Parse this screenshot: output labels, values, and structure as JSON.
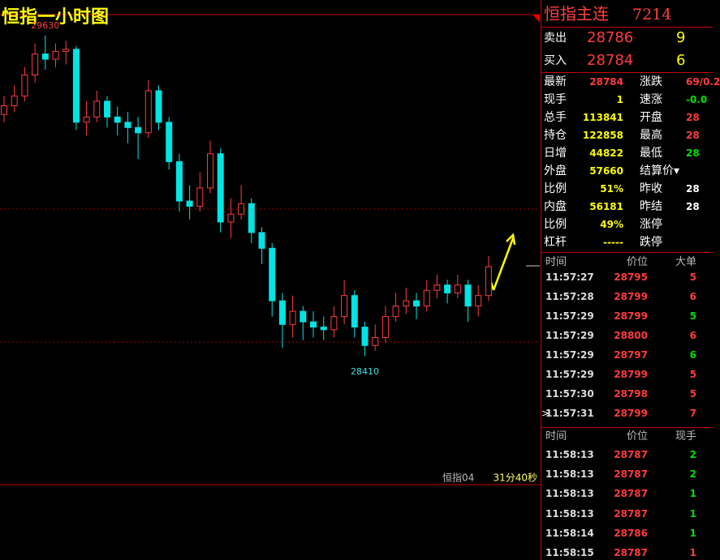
{
  "title": "恒指一小时图",
  "chart": {
    "type": "candlestick",
    "ylim": [
      27920,
      29710
    ],
    "max_label": 29630,
    "min_label": 28410,
    "up_color": "#ff3c3c",
    "down_color": "#00e4e4",
    "candles": [
      [
        29330,
        29363,
        29400,
        29300
      ],
      [
        29363,
        29400,
        29440,
        29340
      ],
      [
        29400,
        29480,
        29510,
        29380
      ],
      [
        29480,
        29560,
        29600,
        29450
      ],
      [
        29560,
        29540,
        29630,
        29500
      ],
      [
        29540,
        29570,
        29600,
        29510
      ],
      [
        29570,
        29578,
        29610,
        29520
      ],
      [
        29578,
        29300,
        29590,
        29270
      ],
      [
        29300,
        29320,
        29380,
        29250
      ],
      [
        29320,
        29380,
        29420,
        29300
      ],
      [
        29380,
        29320,
        29400,
        29280
      ],
      [
        29320,
        29300,
        29360,
        29250
      ],
      [
        29300,
        29280,
        29340,
        29220
      ],
      [
        29280,
        29260,
        29320,
        29160
      ],
      [
        29260,
        29420,
        29460,
        29240
      ],
      [
        29420,
        29300,
        29440,
        29270
      ],
      [
        29300,
        29150,
        29320,
        29120
      ],
      [
        29150,
        29000,
        29180,
        28960
      ],
      [
        29000,
        28980,
        29060,
        28930
      ],
      [
        28980,
        29050,
        29110,
        28960
      ],
      [
        29050,
        29180,
        29230,
        29030
      ],
      [
        29180,
        28920,
        29200,
        28880
      ],
      [
        28920,
        28950,
        29010,
        28860
      ],
      [
        28950,
        28990,
        29060,
        28930
      ],
      [
        28990,
        28880,
        29010,
        28840
      ],
      [
        28880,
        28820,
        28900,
        28760
      ],
      [
        28820,
        28620,
        28840,
        28560
      ],
      [
        28620,
        28530,
        28650,
        28440
      ],
      [
        28530,
        28580,
        28640,
        28480
      ],
      [
        28580,
        28540,
        28600,
        28470
      ],
      [
        28540,
        28520,
        28580,
        28480
      ],
      [
        28520,
        28510,
        28560,
        28470
      ],
      [
        28510,
        28560,
        28600,
        28480
      ],
      [
        28560,
        28640,
        28700,
        28530
      ],
      [
        28640,
        28520,
        28660,
        28480
      ],
      [
        28520,
        28450,
        28540,
        28410
      ],
      [
        28450,
        28480,
        28530,
        28430
      ],
      [
        28480,
        28560,
        28600,
        28460
      ],
      [
        28560,
        28600,
        28650,
        28540
      ],
      [
        28600,
        28620,
        28670,
        28570
      ],
      [
        28620,
        28600,
        28650,
        28550
      ],
      [
        28600,
        28660,
        28700,
        28580
      ],
      [
        28660,
        28680,
        28720,
        28630
      ],
      [
        28680,
        28650,
        28700,
        28610
      ],
      [
        28650,
        28680,
        28720,
        28630
      ],
      [
        28680,
        28600,
        28700,
        28540
      ],
      [
        28600,
        28640,
        28680,
        28560
      ],
      [
        28640,
        28750,
        28790,
        28620
      ]
    ]
  },
  "footer": {
    "contract": "恒指04",
    "countdown": "31分40秒"
  },
  "quote": {
    "name": "恒指主连",
    "code": "7214",
    "ask": {
      "label": "卖出",
      "price": 28786,
      "size": 9
    },
    "bid": {
      "label": "买入",
      "price": 28784,
      "size": 6
    }
  },
  "stats_left": [
    {
      "label": "最新",
      "value": "28784",
      "color": "#ff3c3c"
    },
    {
      "label": "现手",
      "value": "1",
      "color": "#ffff00"
    },
    {
      "label": "总手",
      "value": "113841",
      "color": "#ffff00"
    },
    {
      "label": "持仓",
      "value": "122858",
      "color": "#ffff00"
    },
    {
      "label": "日增",
      "value": "44822",
      "color": "#ffff00"
    },
    {
      "label": "外盘",
      "value": "57660",
      "color": "#ffff00"
    },
    {
      "label": "比例",
      "value": "51%",
      "color": "#ffff00"
    },
    {
      "label": "内盘",
      "value": "56181",
      "color": "#ffff00"
    },
    {
      "label": "比例",
      "value": "49%",
      "color": "#ffff00"
    },
    {
      "label": "杠杆",
      "value": "-----",
      "color": "#ffff00"
    }
  ],
  "stats_right": [
    {
      "label": "涨跌",
      "value": "69/0.2",
      "color": "#ff3c3c"
    },
    {
      "label": "速涨",
      "value": "-0.0",
      "color": "#00e000"
    },
    {
      "label": "开盘",
      "value": "28",
      "color": "#ff3c3c"
    },
    {
      "label": "最高",
      "value": "28",
      "color": "#ff3c3c"
    },
    {
      "label": "最低",
      "value": "28",
      "color": "#00e000"
    },
    {
      "label": "结算价▾",
      "value": "",
      "color": "#ffffff"
    },
    {
      "label": "昨收",
      "value": "28",
      "color": "#ffffff"
    },
    {
      "label": "昨结",
      "value": "28",
      "color": "#ffffff"
    },
    {
      "label": "涨停",
      "value": "",
      "color": "#ffffff"
    },
    {
      "label": "跌停",
      "value": "",
      "color": "#ffffff"
    }
  ],
  "ticks": {
    "headers": [
      "时间",
      "价位",
      "大单"
    ],
    "rows": [
      {
        "time": "11:57:27",
        "price": 28795,
        "size": 5,
        "color": "#ff3c3c"
      },
      {
        "time": "11:57:28",
        "price": 28799,
        "size": 6,
        "color": "#ff3c3c"
      },
      {
        "time": "11:57:29",
        "price": 28799,
        "size": 5,
        "color": "#00e000"
      },
      {
        "time": "11:57:29",
        "price": 28800,
        "size": 6,
        "color": "#ff3c3c"
      },
      {
        "time": "11:57:29",
        "price": 28797,
        "size": 6,
        "color": "#00e000"
      },
      {
        "time": "11:57:29",
        "price": 28799,
        "size": 5,
        "color": "#ff3c3c"
      },
      {
        "time": "11:57:30",
        "price": 28798,
        "size": 5,
        "color": "#ff3c3c"
      },
      {
        "time": "11:57:31",
        "price": 28799,
        "size": 7,
        "color": "#ff3c3c",
        "marker": ">"
      }
    ]
  },
  "trades": {
    "headers": [
      "时间",
      "价位",
      "现手"
    ],
    "rows": [
      {
        "time": "11:58:13",
        "price": 28787,
        "size": 2,
        "color": "#00e000"
      },
      {
        "time": "11:58:13",
        "price": 28787,
        "size": 2,
        "color": "#00e000"
      },
      {
        "time": "11:58:13",
        "price": 28787,
        "size": 1,
        "color": "#00e000"
      },
      {
        "time": "11:58:13",
        "price": 28787,
        "size": 1,
        "color": "#00e000"
      },
      {
        "time": "11:58:14",
        "price": 28786,
        "size": 1,
        "color": "#00e000"
      },
      {
        "time": "11:58:15",
        "price": 28787,
        "size": 1,
        "color": "#ff3c3c"
      }
    ]
  }
}
